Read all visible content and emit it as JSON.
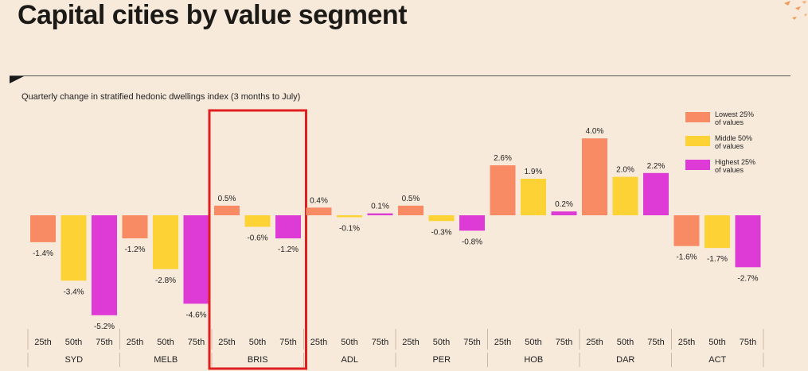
{
  "page": {
    "title": "Capital cities by value segment"
  },
  "chart_data": {
    "type": "bar",
    "title": "Quarterly change in stratified hedonic dwellings index (3 months to July)",
    "xlabel": "",
    "ylabel": "",
    "ylim": [
      -6,
      4.5
    ],
    "categories": [
      "SYD",
      "MELB",
      "BRIS",
      "ADL",
      "PER",
      "HOB",
      "DAR",
      "ACT"
    ],
    "segment_labels": [
      "25th",
      "50th",
      "75th"
    ],
    "series": [
      {
        "name": "Lowest 25% of values",
        "legend_lines": [
          "Lowest 25%",
          "of values"
        ],
        "color": "#f98b64",
        "values": [
          -1.4,
          -1.2,
          0.5,
          0.4,
          0.5,
          2.6,
          4.0,
          -1.6
        ]
      },
      {
        "name": "Middle 50% of values",
        "legend_lines": [
          "Middle 50%",
          "of values"
        ],
        "color": "#fcd234",
        "values": [
          -3.4,
          -2.8,
          -0.6,
          -0.1,
          -0.3,
          1.9,
          2.0,
          -1.7
        ]
      },
      {
        "name": "Highest 25% of values",
        "legend_lines": [
          "Highest 25%",
          "of values"
        ],
        "color": "#dd3ad6",
        "values": [
          -5.2,
          -4.6,
          -1.2,
          0.1,
          -0.8,
          0.2,
          2.2,
          -2.7
        ]
      }
    ],
    "highlight": {
      "category": "BRIS",
      "color": "#e02020"
    },
    "legend_position": "top-right",
    "grid": false
  }
}
